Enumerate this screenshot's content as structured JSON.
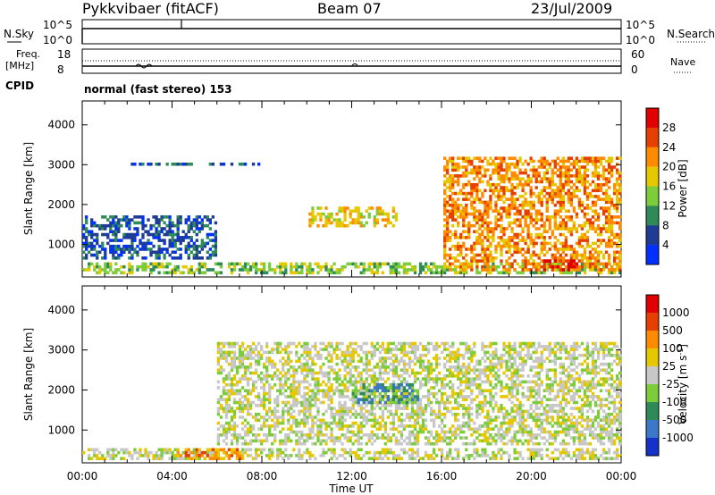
{
  "header": {
    "station": "Pykkvibaer (fitACF)",
    "beam": "Beam 07",
    "date": "23/Jul/2009"
  },
  "noise_panel": {
    "left_label": "N.Sky",
    "right_label": "N.Search",
    "left_ticks": [
      "10^5",
      "10^0"
    ],
    "right_ticks": [
      "10^5",
      "10^0"
    ]
  },
  "freq_panel": {
    "left_label_line1": "Freq.",
    "left_label_line2": "[MHz]",
    "right_label": "Nave",
    "left_ticks": [
      "18",
      "8"
    ],
    "right_ticks": [
      "60",
      "0"
    ]
  },
  "cpid": {
    "label": "CPID",
    "text": "normal (fast stereo) 153"
  },
  "chart_data": [
    {
      "type": "heatmap",
      "title": "",
      "ylabel": "Slant Range [km]",
      "xlabel": "",
      "ylim": [
        180,
        4600
      ],
      "xlim": [
        0,
        24
      ],
      "x_ticks": [
        "00:00",
        "04:00",
        "08:00",
        "12:00",
        "16:00",
        "20:00",
        "00:00"
      ],
      "y_ticks": [
        "1000",
        "2000",
        "3000",
        "4000"
      ],
      "colorbar": {
        "label": "Power [dB]",
        "levels": [
          "4",
          "8",
          "12",
          "16",
          "20",
          "24",
          "28"
        ],
        "colors": [
          "#0030ff",
          "#1e3c96",
          "#2e8b57",
          "#7dcc3c",
          "#e6c800",
          "#ff8c00",
          "#e64000",
          "#e00000"
        ]
      },
      "features": [
        {
          "name": "low_range_band",
          "t": [
            0,
            24
          ],
          "range_km": [
            250,
            480
          ],
          "level": 3
        },
        {
          "name": "early_patches",
          "t": [
            0,
            6
          ],
          "range_km": [
            600,
            1700
          ],
          "level": 1
        },
        {
          "name": "scattered_3000",
          "t": [
            2,
            8
          ],
          "range_km": [
            2950,
            3050
          ],
          "level": 1
        },
        {
          "name": "evening_band",
          "t": [
            10,
            14
          ],
          "range_km": [
            1400,
            1900
          ],
          "level": 4
        },
        {
          "name": "late_echoes",
          "t": [
            16,
            24
          ],
          "range_km": [
            300,
            3200
          ],
          "level": 5
        },
        {
          "name": "strong_patch_20h",
          "t": [
            20.5,
            22
          ],
          "range_km": [
            300,
            600
          ],
          "level": 7
        }
      ]
    },
    {
      "type": "heatmap",
      "title": "",
      "ylabel": "Slant Range [km]",
      "xlabel": "Time UT",
      "ylim": [
        180,
        4600
      ],
      "xlim": [
        0,
        24
      ],
      "x_ticks": [
        "00:00",
        "04:00",
        "08:00",
        "12:00",
        "16:00",
        "20:00",
        "00:00"
      ],
      "y_ticks": [
        "1000",
        "2000",
        "3000",
        "4000"
      ],
      "colorbar": {
        "label": "Velocity [m s^-1]",
        "levels": [
          "1000",
          "500",
          "100",
          "25",
          "-25",
          "-100",
          "-500",
          "-1000"
        ],
        "colors": [
          "#1432c8",
          "#3c78c8",
          "#2e8b57",
          "#7dcc3c",
          "#c8c8c8",
          "#e6c800",
          "#ff8c00",
          "#e64000",
          "#e00000"
        ]
      },
      "features": [
        {
          "name": "low_range_band",
          "t": [
            0,
            24
          ],
          "range_km": [
            250,
            480
          ],
          "level": 4
        },
        {
          "name": "grey_near_zero",
          "t": [
            6,
            24
          ],
          "range_km": [
            600,
            3200
          ],
          "level": 4
        },
        {
          "name": "green_patch_13h",
          "t": [
            12,
            15
          ],
          "range_km": [
            1650,
            2100
          ],
          "level": 2
        },
        {
          "name": "orange_low_5h",
          "t": [
            4,
            7
          ],
          "range_km": [
            250,
            500
          ],
          "level": 6
        }
      ]
    }
  ]
}
